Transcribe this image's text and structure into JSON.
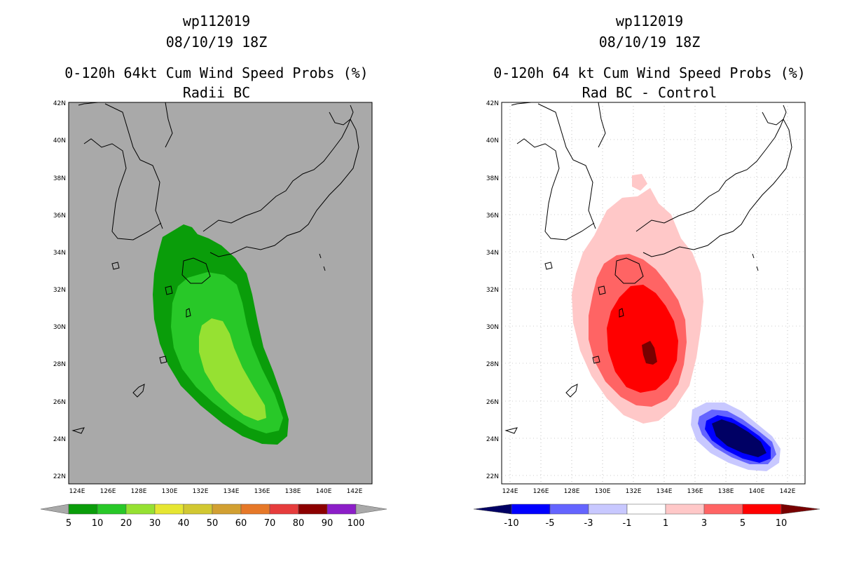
{
  "left_panel": {
    "storm_id": "wp112019",
    "datetime": "08/10/19 18Z",
    "title": "0-120h 64kt Cum Wind Speed Probs (%)",
    "subtitle": "Radii BC",
    "background_color": "#a9a9a9",
    "lat_ticks": [
      "42N",
      "40N",
      "38N",
      "36N",
      "34N",
      "32N",
      "30N",
      "28N",
      "26N",
      "24N",
      "22N"
    ],
    "lon_ticks": [
      "124E",
      "126E",
      "128E",
      "130E",
      "132E",
      "134E",
      "136E",
      "138E",
      "140E",
      "142E"
    ],
    "legend": {
      "colors": [
        "#0a9d0a",
        "#28c828",
        "#96e132",
        "#e6e632",
        "#d2c832",
        "#d2a032",
        "#e67828",
        "#e63c3c",
        "#8c0000",
        "#8c1ec8"
      ],
      "labels": [
        "5",
        "10",
        "20",
        "30",
        "40",
        "50",
        "60",
        "70",
        "80",
        "90",
        "100"
      ]
    },
    "prob_levels": [
      {
        "level": "5-10",
        "color": "#0a9d0a"
      },
      {
        "level": "10-20",
        "color": "#28c828"
      },
      {
        "level": "20-30",
        "color": "#96e132"
      }
    ]
  },
  "right_panel": {
    "storm_id": "wp112019",
    "datetime": "08/10/19 18Z",
    "title": "0-120h 64 kt Cum Wind Speed Probs (%)",
    "subtitle": "Rad BC - Control",
    "background_color": "#ffffff",
    "lat_ticks": [
      "42N",
      "40N",
      "38N",
      "36N",
      "34N",
      "32N",
      "30N",
      "28N",
      "26N",
      "24N",
      "22N"
    ],
    "lon_ticks": [
      "124E",
      "126E",
      "128E",
      "130E",
      "132E",
      "134E",
      "136E",
      "138E",
      "140E",
      "142E"
    ],
    "legend": {
      "colors": [
        "#000064",
        "#0000ff",
        "#6464ff",
        "#c8c8ff",
        "#ffffff",
        "#ffc8c8",
        "#ff6464",
        "#ff0000",
        "#780000"
      ],
      "labels": [
        "-10",
        "-5",
        "-3",
        "-1",
        "1",
        "3",
        "5",
        "10"
      ]
    },
    "diff_levels": [
      {
        "level": "1-3",
        "color": "#ffc8c8"
      },
      {
        "level": "3-5",
        "color": "#ff6464"
      },
      {
        "level": "5-10",
        "color": "#ff0000"
      },
      {
        "level": ">10",
        "color": "#780000"
      },
      {
        "level": "-3 to -1",
        "color": "#c8c8ff"
      },
      {
        "level": "-5 to -3",
        "color": "#6464ff"
      },
      {
        "level": "-10 to -5",
        "color": "#0000ff"
      },
      {
        "level": "<-10",
        "color": "#000064"
      }
    ]
  }
}
